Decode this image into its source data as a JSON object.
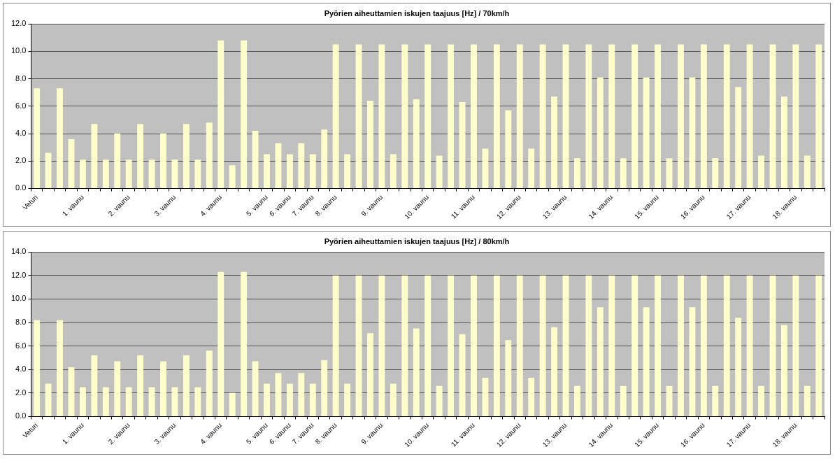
{
  "chart_data": [
    {
      "type": "bar",
      "title": "Pyörien aiheuttamien iskujen taajuus [Hz] / 70km/h",
      "categories": [
        "Veturi",
        null,
        null,
        null,
        "1. vaunu",
        null,
        null,
        null,
        "2. vaunu",
        null,
        null,
        null,
        "3. vaunu",
        null,
        null,
        null,
        "4. vaunu",
        null,
        null,
        null,
        "5. vaunu",
        null,
        "6. vaunu",
        null,
        "7. vaunu",
        null,
        "8. vaunu",
        null,
        null,
        null,
        "9. vaunu",
        null,
        null,
        null,
        "10. vaunu",
        null,
        null,
        null,
        "11. vaunu",
        null,
        null,
        null,
        "12. vaunu",
        null,
        null,
        null,
        "13. vaunu",
        null,
        null,
        null,
        "14. vaunu",
        null,
        null,
        null,
        "15. vaunu",
        null,
        null,
        null,
        "16. vaunu",
        null,
        null,
        null,
        "17. vaunu",
        null,
        null,
        null,
        "18. vaunu",
        null,
        null
      ],
      "values": [
        7.3,
        2.6,
        7.3,
        3.6,
        2.1,
        4.7,
        2.1,
        4.0,
        2.1,
        4.7,
        2.1,
        4.0,
        2.1,
        4.7,
        2.1,
        4.8,
        10.8,
        1.7,
        10.8,
        4.2,
        2.5,
        3.3,
        2.5,
        3.3,
        2.5,
        4.3,
        10.5,
        2.5,
        10.5,
        6.4,
        10.5,
        2.5,
        10.5,
        6.5,
        10.5,
        2.4,
        10.5,
        6.3,
        10.5,
        2.9,
        10.5,
        5.7,
        10.5,
        2.9,
        10.5,
        6.7,
        10.5,
        2.2,
        10.5,
        8.1,
        10.5,
        2.2,
        10.5,
        8.1,
        10.5,
        2.2,
        10.5,
        8.1,
        10.5,
        2.2,
        10.5,
        7.4,
        10.5,
        2.4,
        10.5,
        6.7,
        10.5,
        2.4,
        10.5
      ],
      "color": "#ffffcc",
      "ylim": [
        0,
        12
      ],
      "yticks": [
        {
          "value": 0,
          "label": "0.0"
        },
        {
          "value": 2,
          "label": "2.0"
        },
        {
          "value": 4,
          "label": "4.0"
        },
        {
          "value": 6,
          "label": "6.0"
        },
        {
          "value": 8,
          "label": "8.0"
        },
        {
          "value": 10,
          "label": "10.0"
        },
        {
          "value": 12,
          "label": "12.0"
        }
      ],
      "grid": "y",
      "legend": false
    },
    {
      "type": "bar",
      "title": "Pyörien aiheuttamien iskujen taajuus [Hz] / 80km/h",
      "categories": [
        "Veturi",
        null,
        null,
        null,
        "1. vaunu",
        null,
        null,
        null,
        "2. vaunu",
        null,
        null,
        null,
        "3. vaunu",
        null,
        null,
        null,
        "4. vaunu",
        null,
        null,
        null,
        "5. vaunu",
        null,
        "6. vaunu",
        null,
        "7. vaunu",
        null,
        "8. vaunu",
        null,
        null,
        null,
        "9. vaunu",
        null,
        null,
        null,
        "10. vaunu",
        null,
        null,
        null,
        "11. vaunu",
        null,
        null,
        null,
        "12. vaunu",
        null,
        null,
        null,
        "13. vaunu",
        null,
        null,
        null,
        "14. vaunu",
        null,
        null,
        null,
        "15. vaunu",
        null,
        null,
        null,
        "16. vaunu",
        null,
        null,
        null,
        "17. vaunu",
        null,
        null,
        null,
        "18. vaunu",
        null,
        null
      ],
      "values": [
        8.2,
        2.8,
        8.2,
        4.2,
        2.5,
        5.2,
        2.5,
        4.7,
        2.5,
        5.2,
        2.5,
        4.7,
        2.5,
        5.2,
        2.5,
        5.6,
        12.3,
        2.0,
        12.3,
        4.7,
        2.8,
        3.7,
        2.8,
        3.7,
        2.8,
        4.8,
        12.0,
        2.8,
        12.0,
        7.1,
        12.0,
        2.8,
        12.0,
        7.5,
        12.0,
        2.6,
        12.0,
        7.0,
        12.0,
        3.3,
        12.0,
        6.5,
        12.0,
        3.3,
        12.0,
        7.6,
        12.0,
        2.6,
        12.0,
        9.3,
        12.0,
        2.6,
        12.0,
        9.3,
        12.0,
        2.6,
        12.0,
        9.3,
        12.0,
        2.6,
        12.0,
        8.4,
        12.0,
        2.6,
        12.0,
        7.8,
        12.0,
        2.6,
        12.0
      ],
      "color": "#ffffcc",
      "ylim": [
        0,
        14
      ],
      "yticks": [
        {
          "value": 0,
          "label": "0.0"
        },
        {
          "value": 2,
          "label": "2.0"
        },
        {
          "value": 4,
          "label": "4.0"
        },
        {
          "value": 6,
          "label": "6.0"
        },
        {
          "value": 8,
          "label": "8.0"
        },
        {
          "value": 10,
          "label": "10.0"
        },
        {
          "value": 12,
          "label": "12.0"
        },
        {
          "value": 14,
          "label": "14.0"
        }
      ],
      "grid": "y",
      "legend": false
    }
  ]
}
